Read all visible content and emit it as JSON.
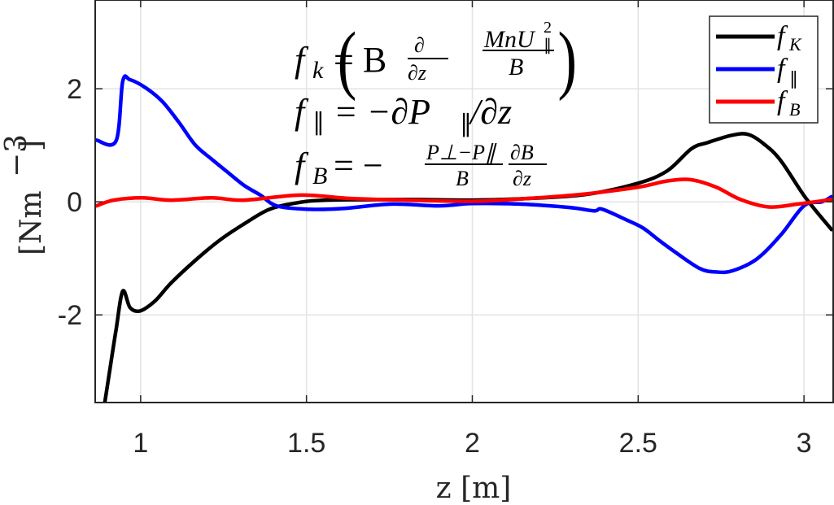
{
  "chart_data": {
    "type": "line",
    "title": "",
    "xlabel": "z [m]",
    "ylabel": "[Nm^-3]",
    "xlim": [
      0.863,
      3.088
    ],
    "ylim": [
      -3.55,
      3.57
    ],
    "xticks": [
      1,
      1.5,
      2,
      2.5,
      3
    ],
    "xtick_labels": [
      "1",
      "1.5",
      "2",
      "2.5",
      "3"
    ],
    "yticks": [
      -2,
      0,
      2
    ],
    "ytick_labels": [
      "-2",
      "0",
      "2"
    ],
    "grid": true,
    "legend_position": "upper right",
    "annotations": [
      "f_k = B ∂/∂z ( M n U_∥² / B )",
      "f_∥ = −∂P_∥/∂z",
      "f_B = −(P_⊥ − P_∥)/B · ∂B/∂z"
    ],
    "series": [
      {
        "name": "f_K",
        "color": "#000000",
        "x": [
          0.892,
          0.907,
          0.926,
          0.946,
          0.968,
          0.998,
          1.042,
          1.091,
          1.164,
          1.238,
          1.312,
          1.385,
          1.459,
          1.557,
          1.802,
          2.0,
          2.171,
          2.342,
          2.5,
          2.588,
          2.661,
          2.71,
          2.784,
          2.833,
          2.882,
          2.931,
          3.005,
          3.083
        ],
        "values": [
          -3.55,
          -2.98,
          -2.26,
          -1.58,
          -1.87,
          -1.93,
          -1.76,
          -1.44,
          -1.04,
          -0.68,
          -0.39,
          -0.14,
          -0.03,
          0.03,
          0.04,
          0.03,
          0.06,
          0.13,
          0.33,
          0.55,
          0.94,
          1.05,
          1.18,
          1.19,
          1.01,
          0.72,
          0.07,
          -0.49
        ]
      },
      {
        "name": "f_∥",
        "color": "#0000ff",
        "x": [
          0.867,
          0.926,
          0.946,
          0.968,
          1.017,
          1.066,
          1.115,
          1.164,
          1.213,
          1.263,
          1.312,
          1.361,
          1.41,
          1.5,
          1.606,
          1.753,
          1.9,
          2.0,
          2.146,
          2.293,
          2.367,
          2.391,
          2.465,
          2.514,
          2.563,
          2.612,
          2.686,
          2.735,
          2.784,
          2.858,
          2.931,
          3.0,
          3.054,
          3.083
        ],
        "values": [
          1.09,
          1.08,
          2.13,
          2.16,
          2.01,
          1.77,
          1.41,
          1.01,
          0.76,
          0.52,
          0.29,
          0.12,
          -0.07,
          -0.13,
          -0.12,
          -0.04,
          -0.07,
          -0.03,
          -0.04,
          -0.1,
          -0.16,
          -0.13,
          -0.32,
          -0.46,
          -0.68,
          -0.89,
          -1.18,
          -1.24,
          -1.22,
          -1.01,
          -0.58,
          -0.07,
          0.0,
          0.09
        ]
      },
      {
        "name": "f_B",
        "color": "#ff0000",
        "x": [
          0.867,
          0.919,
          1.005,
          1.091,
          1.213,
          1.312,
          1.483,
          1.631,
          1.802,
          2.0,
          2.171,
          2.342,
          2.5,
          2.588,
          2.661,
          2.735,
          2.809,
          2.894,
          2.98,
          3.083
        ],
        "values": [
          -0.07,
          0.03,
          0.07,
          0.03,
          0.07,
          0.03,
          0.12,
          0.06,
          0.03,
          0.01,
          0.06,
          0.14,
          0.26,
          0.37,
          0.39,
          0.26,
          0.04,
          -0.09,
          -0.04,
          0.04
        ]
      }
    ]
  },
  "axes": {
    "xlabel": "z [m]",
    "ylabel_main": "[Nm",
    "ylabel_sup": "−3",
    "ylabel_close": "]"
  },
  "legend": {
    "items": [
      {
        "label": "f",
        "sub": "K",
        "color": "#000000"
      },
      {
        "label": "f",
        "sub": "∥",
        "color": "#0000ff"
      },
      {
        "label": "f",
        "sub": "B",
        "color": "#ff0000"
      }
    ]
  },
  "equations": {
    "fk": {
      "lhs": "f",
      "lhs_sub": "k",
      "eq": "= B",
      "d_num": "∂",
      "d_den": "∂z",
      "num": "MnU",
      "num_sup": "2",
      "num_sub": "∥",
      "den": "B"
    },
    "fpar": {
      "lhs": "f",
      "lhs_sub": "∥",
      "rhs": "= −∂P",
      "rhs_sub": "∥",
      "rhs_tail": "/∂z"
    },
    "fb": {
      "lhs": "f",
      "lhs_sub": "B",
      "eq": "= −",
      "num": "P⊥−P∥",
      "den": "B",
      "d_num": "∂B",
      "d_den": "∂z"
    }
  }
}
